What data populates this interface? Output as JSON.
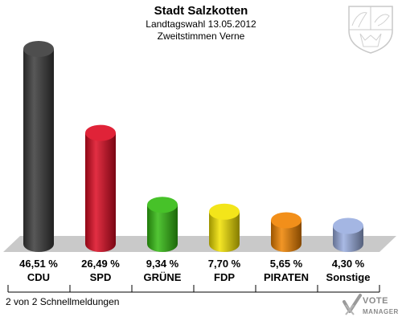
{
  "chart_data": {
    "type": "bar",
    "title": "Stadt Salzkotten",
    "subtitle_1": "Landtagswahl 13.05.2012",
    "subtitle_2": "Zweitstimmen Verne",
    "categories": [
      "CDU",
      "SPD",
      "GRÜNE",
      "FDP",
      "PIRATEN",
      "Sonstige"
    ],
    "values": [
      46.51,
      26.49,
      9.34,
      7.7,
      5.65,
      4.3
    ],
    "value_labels": [
      "46,51 %",
      "26,49 %",
      "9,34 %",
      "7,70 %",
      "5,65 %",
      "4,30 %"
    ],
    "colors": [
      "#3a3a3a",
      "#dd0a22",
      "#33bb11",
      "#f2e200",
      "#f08300",
      "#9aaee0"
    ],
    "ylim": [
      0,
      46.51
    ],
    "grid": false,
    "legend": "none"
  },
  "footer": {
    "status": "2 von 2 Schnellmeldungen"
  },
  "brand": {
    "line1": "VOTE",
    "line2": "MANAGER"
  }
}
